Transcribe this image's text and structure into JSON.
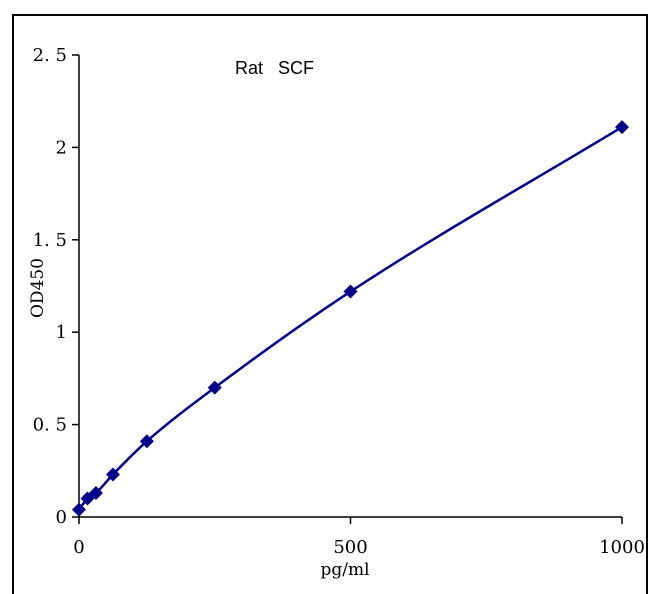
{
  "chart_data": {
    "type": "scatter",
    "title": "Rat   SCF",
    "xlabel": "pg/ml",
    "ylabel": "OD450",
    "xlim": [
      0,
      1000
    ],
    "ylim": [
      0,
      2.5
    ],
    "x_ticks": [
      0,
      500,
      1000
    ],
    "x_tick_labels": [
      "0",
      "500",
      "1000"
    ],
    "y_ticks": [
      0,
      0.5,
      1,
      1.5,
      2,
      2.5
    ],
    "y_tick_labels": [
      "0",
      "0. 5",
      "1",
      "1. 5",
      "2",
      "2. 5"
    ],
    "grid": false,
    "series": [
      {
        "x": [
          0,
          15.6,
          31.25,
          62.5,
          125,
          250,
          500,
          1000
        ],
        "y": [
          0.04,
          0.1,
          0.13,
          0.23,
          0.41,
          0.7,
          1.22,
          2.11
        ]
      }
    ],
    "colors": {
      "marker": "#00008B",
      "curve": "#00008B",
      "axis": "#000000"
    }
  }
}
